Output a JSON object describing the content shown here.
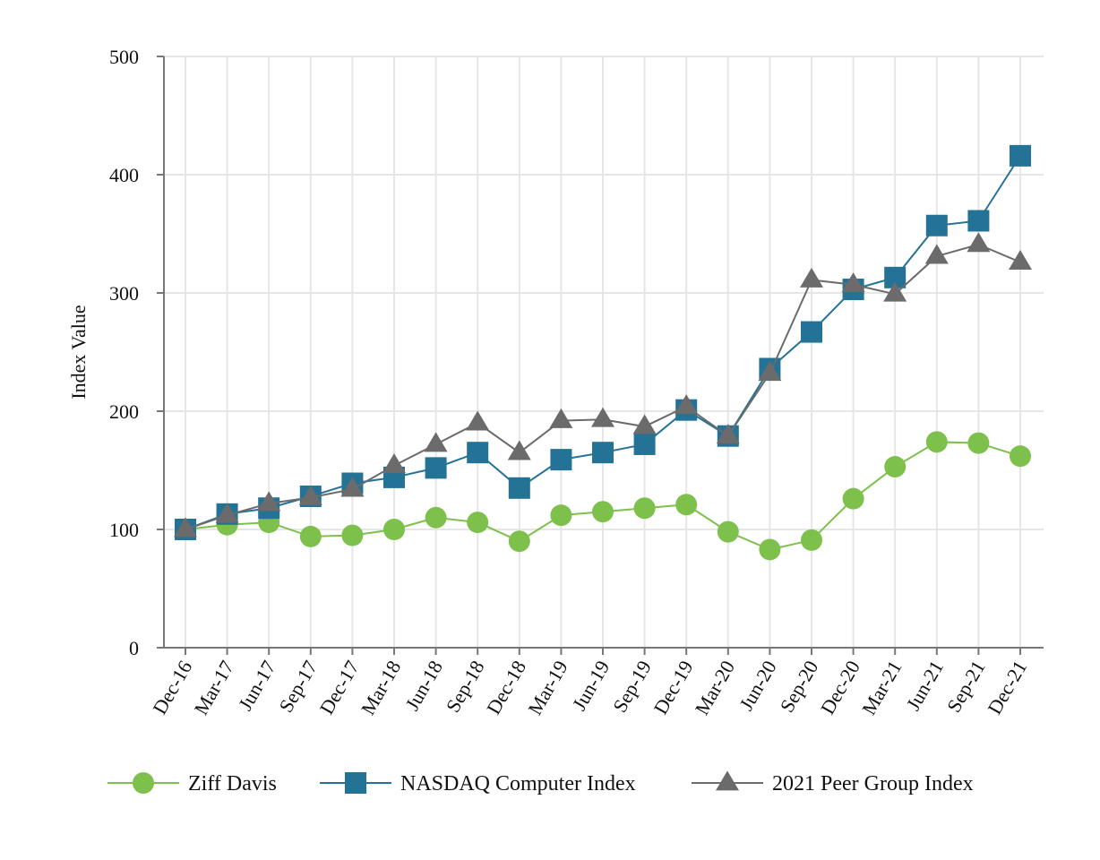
{
  "chart_data": {
    "type": "line",
    "title": "",
    "xlabel": "",
    "ylabel": "Index Value",
    "ylim": [
      0,
      500
    ],
    "yticks": [
      0,
      100,
      200,
      300,
      400,
      500
    ],
    "grid": true,
    "legend_position": "bottom",
    "categories": [
      "Dec-16",
      "Mar-17",
      "Jun-17",
      "Sep-17",
      "Dec-17",
      "Mar-18",
      "Jun-18",
      "Sep-18",
      "Dec-18",
      "Mar-19",
      "Jun-19",
      "Sep-19",
      "Dec-19",
      "Mar-20",
      "Jun-20",
      "Sep-20",
      "Dec-20",
      "Mar-21",
      "Jun-21",
      "Sep-21",
      "Dec-21"
    ],
    "series": [
      {
        "name": "Ziff Davis",
        "color": "#7dc04b",
        "marker": "circle",
        "values": [
          100,
          104,
          106,
          94,
          95,
          100,
          110,
          106,
          90,
          112,
          115,
          118,
          121,
          98,
          83,
          91,
          126,
          153,
          174,
          173,
          162
        ]
      },
      {
        "name": "NASDAQ Computer Index",
        "color": "#247396",
        "marker": "square",
        "values": [
          100,
          113,
          118,
          128,
          139,
          144,
          152,
          165,
          135,
          159,
          165,
          172,
          201,
          179,
          236,
          267,
          303,
          313,
          357,
          361,
          416
        ]
      },
      {
        "name": "2021 Peer Group Index",
        "color": "#6b6b6b",
        "marker": "triangle",
        "values": [
          100,
          112,
          122,
          127,
          134,
          154,
          172,
          190,
          165,
          192,
          193,
          187,
          204,
          179,
          232,
          311,
          307,
          299,
          331,
          341,
          326
        ]
      }
    ]
  }
}
